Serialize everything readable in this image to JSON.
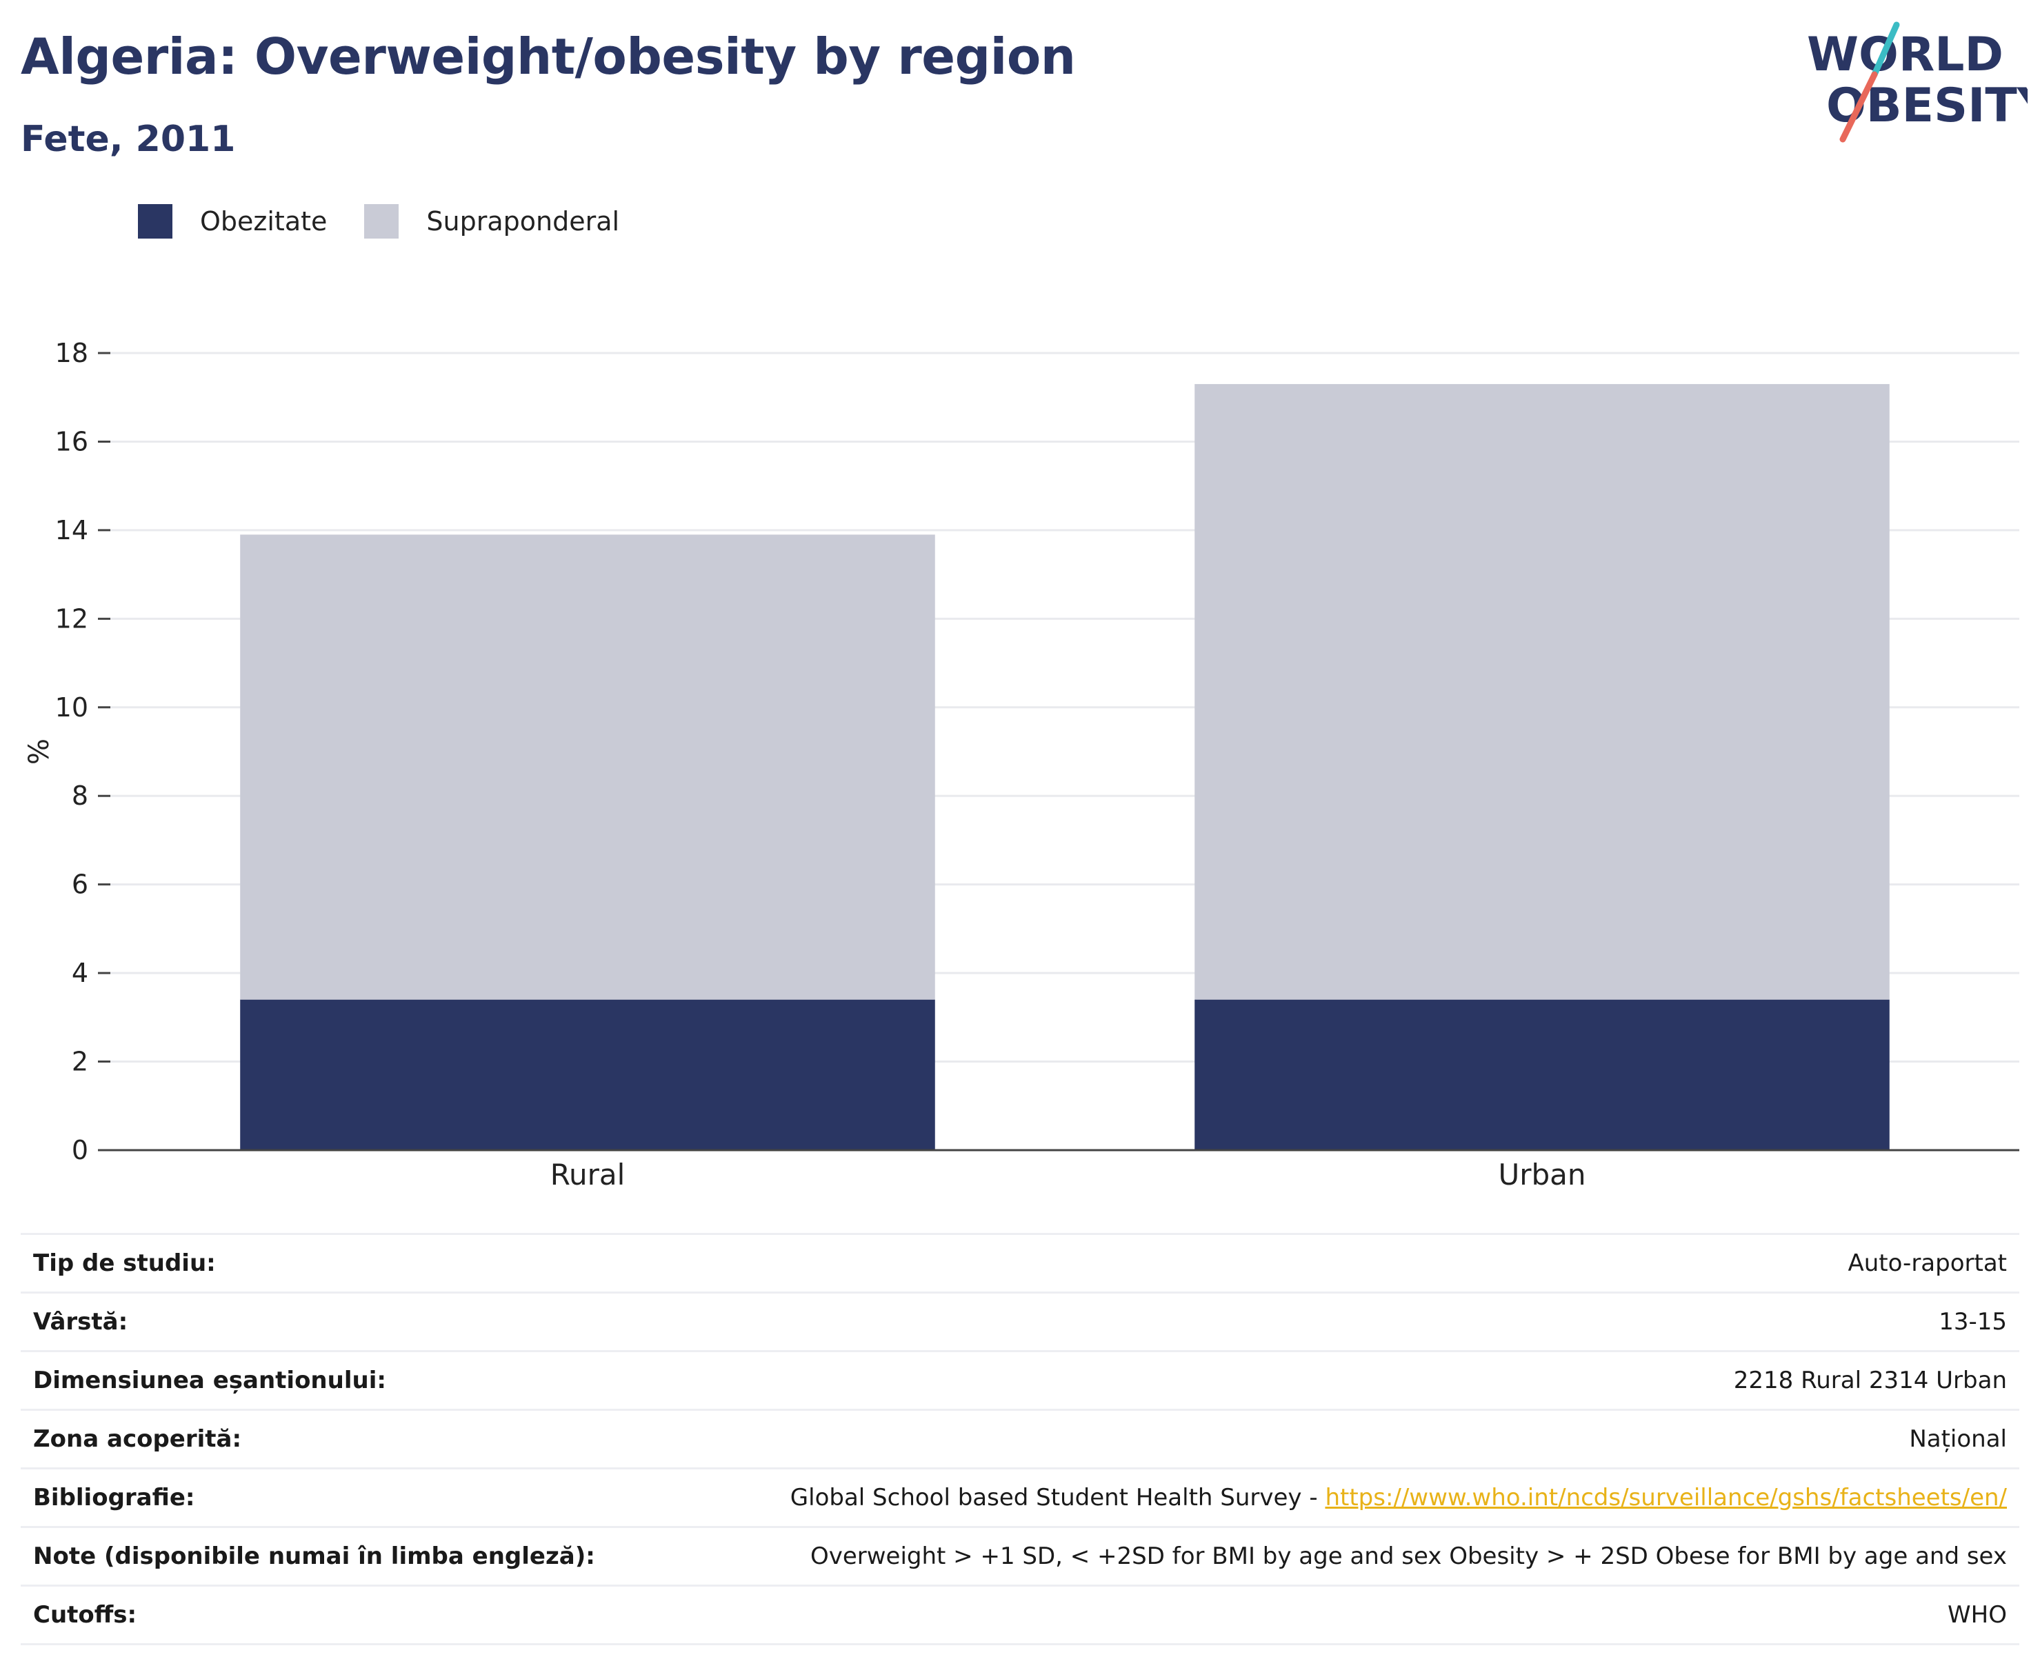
{
  "header": {
    "title": "Algeria: Overweight/obesity by region",
    "subtitle": "Fete, 2011"
  },
  "logo": {
    "line1": "WORLD",
    "line2": "OBESITY"
  },
  "colors": {
    "obesity": "#2a3663",
    "overweight": "#c9cbd6",
    "title": "#2a3663",
    "link": "#e8b218",
    "logo_teal": "#3bbcc4",
    "logo_coral": "#e8685a"
  },
  "chart_data": {
    "type": "bar",
    "stacked": true,
    "categories": [
      "Rural",
      "Urban"
    ],
    "series": [
      {
        "name": "Obezitate",
        "values": [
          3.4,
          3.4
        ]
      },
      {
        "name": "Supraponderal",
        "values": [
          10.5,
          13.9
        ]
      }
    ],
    "ylabel": "%",
    "ylim": [
      0,
      18
    ],
    "yticks": [
      0,
      2,
      4,
      6,
      8,
      10,
      12,
      14,
      16,
      18
    ],
    "grid": true,
    "legend_position": "top-left"
  },
  "info": [
    {
      "label": "Tip de studiu:",
      "value": "Auto-raportat"
    },
    {
      "label": "Vârstă:",
      "value": "13-15"
    },
    {
      "label": "Dimensiunea eșantionului:",
      "value": "2218 Rural 2314 Urban"
    },
    {
      "label": "Zona acoperită:",
      "value": "Național"
    },
    {
      "label": "Bibliografie:",
      "value": "Global School based Student Health Survey - ",
      "link": "https://www.who.int/ncds/surveillance/gshs/factsheets/en/"
    },
    {
      "label": "Note (disponibile numai în limba engleză):",
      "value": "Overweight > +1 SD, < +2SD for BMI by age and sex Obesity > + 2SD Obese for BMI by age and sex"
    },
    {
      "label": "Cutoffs:",
      "value": "WHO"
    }
  ]
}
